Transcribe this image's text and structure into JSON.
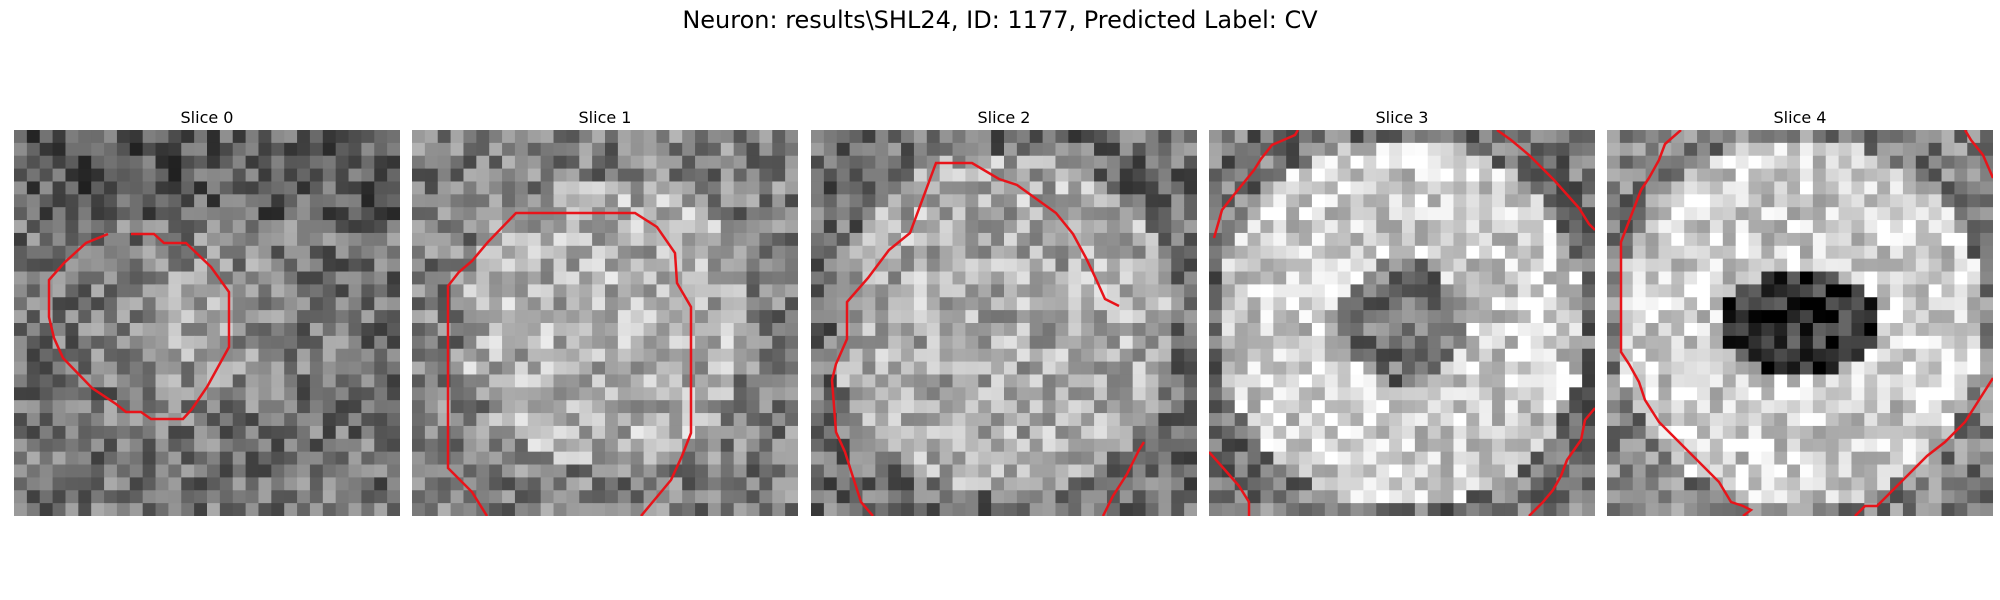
{
  "figure": {
    "title": "Neuron: results\\SHL24, ID: 1177, Predicted Label: CV",
    "colormap": "gray",
    "contour_color": "#e8141a",
    "grid_size": 30
  },
  "slices": [
    {
      "label": "Slice 0",
      "pattern": "small-bright-center"
    },
    {
      "label": "Slice 1",
      "pattern": "bright-disk"
    },
    {
      "label": "Slice 2",
      "pattern": "large-disk"
    },
    {
      "label": "Slice 3",
      "pattern": "ring-dark-center"
    },
    {
      "label": "Slice 4",
      "pattern": "ring-very-dark-center"
    }
  ]
}
